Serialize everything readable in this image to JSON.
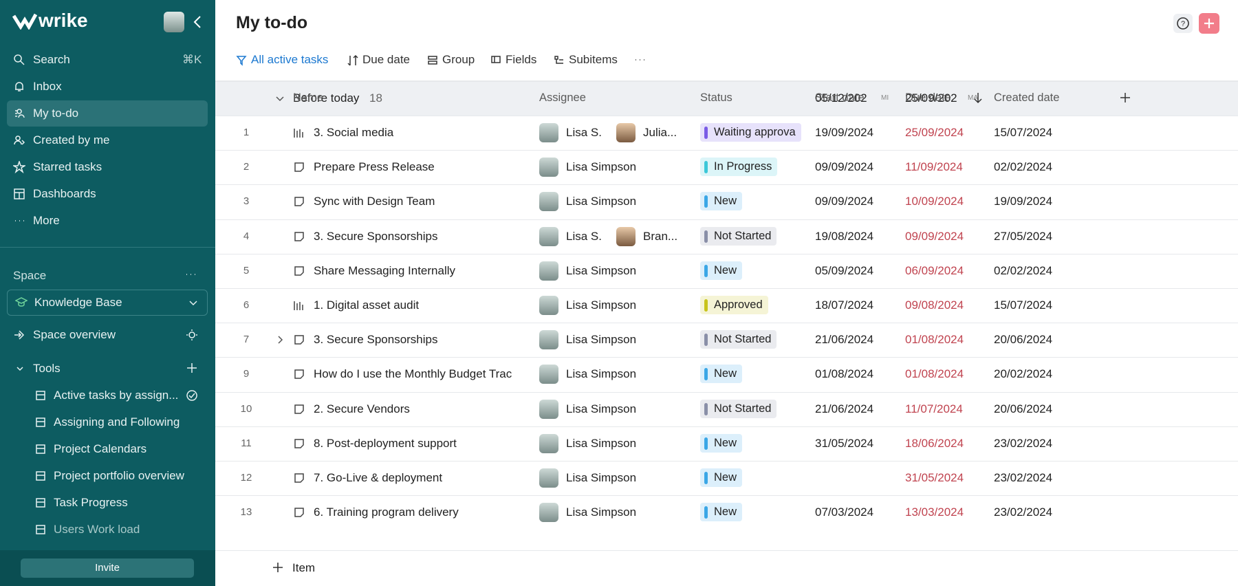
{
  "sidebar": {
    "logo": "wrike",
    "nav": [
      {
        "label": "Search",
        "shortcut": "⌘K"
      },
      {
        "label": "Inbox"
      },
      {
        "label": "My to-do",
        "selected": true
      },
      {
        "label": "Created by me"
      },
      {
        "label": "Starred tasks"
      },
      {
        "label": "Dashboards"
      },
      {
        "label": "More"
      }
    ],
    "space_label": "Space",
    "space_name": "Knowledge Base",
    "space_overview": "Space overview",
    "tools_label": "Tools",
    "tools": [
      "Active tasks by assign...",
      "Assigning and Following",
      "Project Calendars",
      "Project portfolio overview",
      "Task Progress",
      "Users Work load"
    ],
    "invite": "Invite"
  },
  "main": {
    "title": "My to-do",
    "toolbar": [
      "All active tasks",
      "Due date",
      "Group",
      "Fields",
      "Subitems"
    ],
    "columns": [
      "Name",
      "Assignee",
      "Status",
      "Start date",
      "Due date",
      "Created date"
    ],
    "group": {
      "label": "Before today",
      "count": 18,
      "start": "05/12/202",
      "start_badge": "MI",
      "due": "25/09/202",
      "due_badge": "MA"
    },
    "rows": [
      {
        "num": 1,
        "icon": "project",
        "name": "3. Social media",
        "assignees": [
          "Lisa S.",
          "Julia..."
        ],
        "status": "Waiting approva",
        "status_color": "#7b5ce6",
        "start": "19/09/2024",
        "due": "25/09/2024",
        "created": "15/07/2024"
      },
      {
        "num": 2,
        "icon": "task",
        "name": "Prepare Press Release",
        "assignees": [
          "Lisa Simpson"
        ],
        "status": "In Progress",
        "status_color": "#3cc8d8",
        "start": "09/09/2024",
        "due": "11/09/2024",
        "created": "02/02/2024"
      },
      {
        "num": 3,
        "icon": "task",
        "name": "Sync with Design Team",
        "assignees": [
          "Lisa Simpson"
        ],
        "status": "New",
        "status_color": "#3ba7e6",
        "start": "09/09/2024",
        "due": "10/09/2024",
        "created": "19/09/2024"
      },
      {
        "num": 4,
        "icon": "task",
        "name": "3. Secure Sponsorships",
        "assignees": [
          "Lisa S.",
          "Bran..."
        ],
        "status": "Not Started",
        "status_color": "#8a8fa8",
        "start": "19/08/2024",
        "due": "09/09/2024",
        "created": "27/05/2024"
      },
      {
        "num": 5,
        "icon": "task",
        "name": "Share Messaging Internally",
        "assignees": [
          "Lisa Simpson"
        ],
        "status": "New",
        "status_color": "#3ba7e6",
        "start": "05/09/2024",
        "due": "06/09/2024",
        "created": "02/02/2024"
      },
      {
        "num": 6,
        "icon": "project",
        "name": "1. Digital asset audit",
        "assignees": [
          "Lisa Simpson"
        ],
        "status": "Approved",
        "status_color": "#c8c41c",
        "start": "18/07/2024",
        "due": "09/08/2024",
        "created": "15/07/2024"
      },
      {
        "num": 7,
        "icon": "task",
        "expandable": true,
        "name": "3. Secure Sponsorships",
        "assignees": [
          "Lisa Simpson"
        ],
        "status": "Not Started",
        "status_color": "#8a8fa8",
        "start": "21/06/2024",
        "due": "01/08/2024",
        "created": "20/06/2024"
      },
      {
        "num": 9,
        "icon": "task",
        "name": "How do I use the Monthly Budget Trac",
        "assignees": [
          "Lisa Simpson"
        ],
        "status": "New",
        "status_color": "#3ba7e6",
        "start": "01/08/2024",
        "due": "01/08/2024",
        "created": "20/02/2024"
      },
      {
        "num": 10,
        "icon": "task",
        "name": "2. Secure Vendors",
        "assignees": [
          "Lisa Simpson"
        ],
        "status": "Not Started",
        "status_color": "#8a8fa8",
        "start": "21/06/2024",
        "due": "11/07/2024",
        "created": "20/06/2024"
      },
      {
        "num": 11,
        "icon": "task",
        "name": "8. Post-deployment support",
        "assignees": [
          "Lisa Simpson"
        ],
        "status": "New",
        "status_color": "#3ba7e6",
        "start": "31/05/2024",
        "due": "18/06/2024",
        "created": "23/02/2024"
      },
      {
        "num": 12,
        "icon": "task",
        "name": "7. Go-Live & deployment",
        "assignees": [
          "Lisa Simpson"
        ],
        "status": "New",
        "status_color": "#3ba7e6",
        "start": null,
        "due": "31/05/2024",
        "created": "23/02/2024"
      },
      {
        "num": 13,
        "icon": "task",
        "name": "6. Training program delivery",
        "assignees": [
          "Lisa Simpson"
        ],
        "status": "New",
        "status_color": "#3ba7e6",
        "start": "07/03/2024",
        "due": "13/03/2024",
        "created": "23/02/2024"
      }
    ],
    "add_item": "Item"
  }
}
